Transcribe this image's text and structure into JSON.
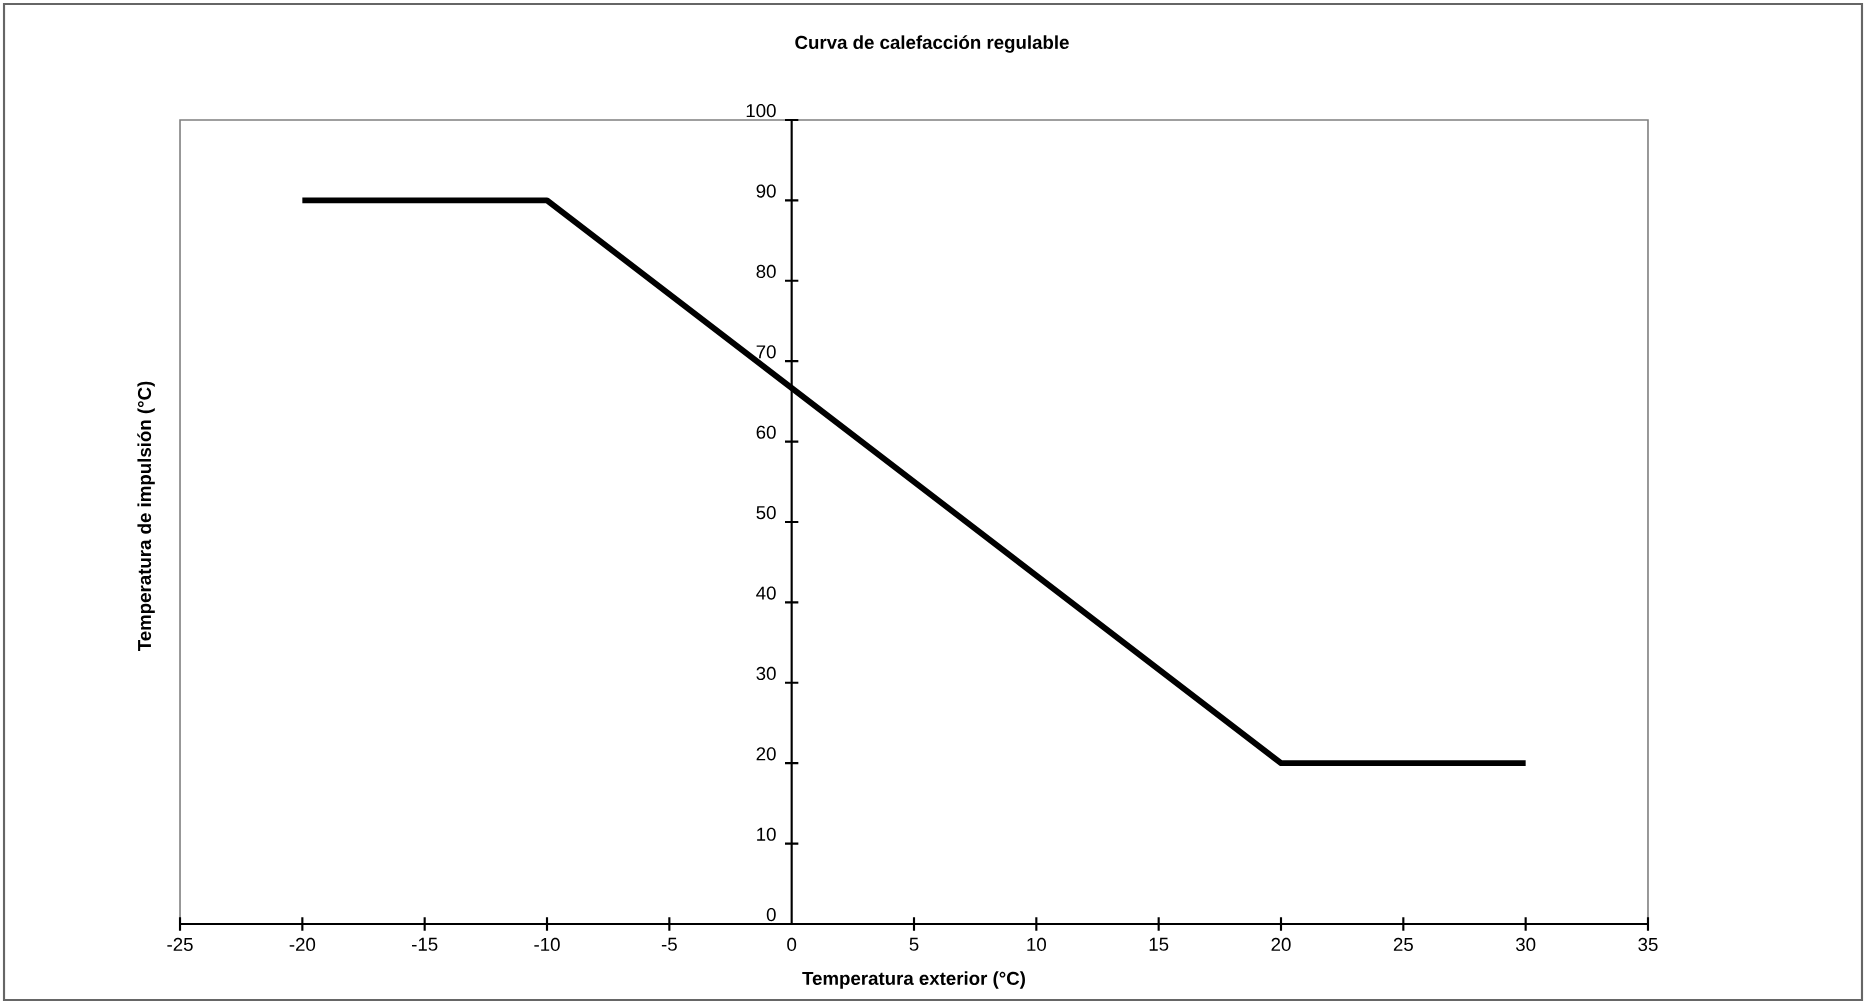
{
  "chart_data": {
    "type": "line",
    "title": "Curva de calefacción regulable",
    "xlabel": "Temperatura exterior (°C)",
    "ylabel": "Temperatura de impulsión (°C)",
    "x": [
      -20,
      -10,
      20,
      30
    ],
    "series": [
      {
        "color": "#000000",
        "values": [
          90,
          90,
          20,
          20
        ]
      }
    ],
    "xlim": [
      -25,
      35
    ],
    "xticks": [
      -25,
      -20,
      -15,
      -10,
      -5,
      0,
      5,
      10,
      15,
      20,
      25,
      30,
      35
    ],
    "ylim": [
      0,
      100
    ],
    "yticks": [
      0,
      10,
      20,
      30,
      40,
      50,
      60,
      70,
      80,
      90,
      100
    ],
    "marker": "none",
    "line_style": "solid"
  }
}
